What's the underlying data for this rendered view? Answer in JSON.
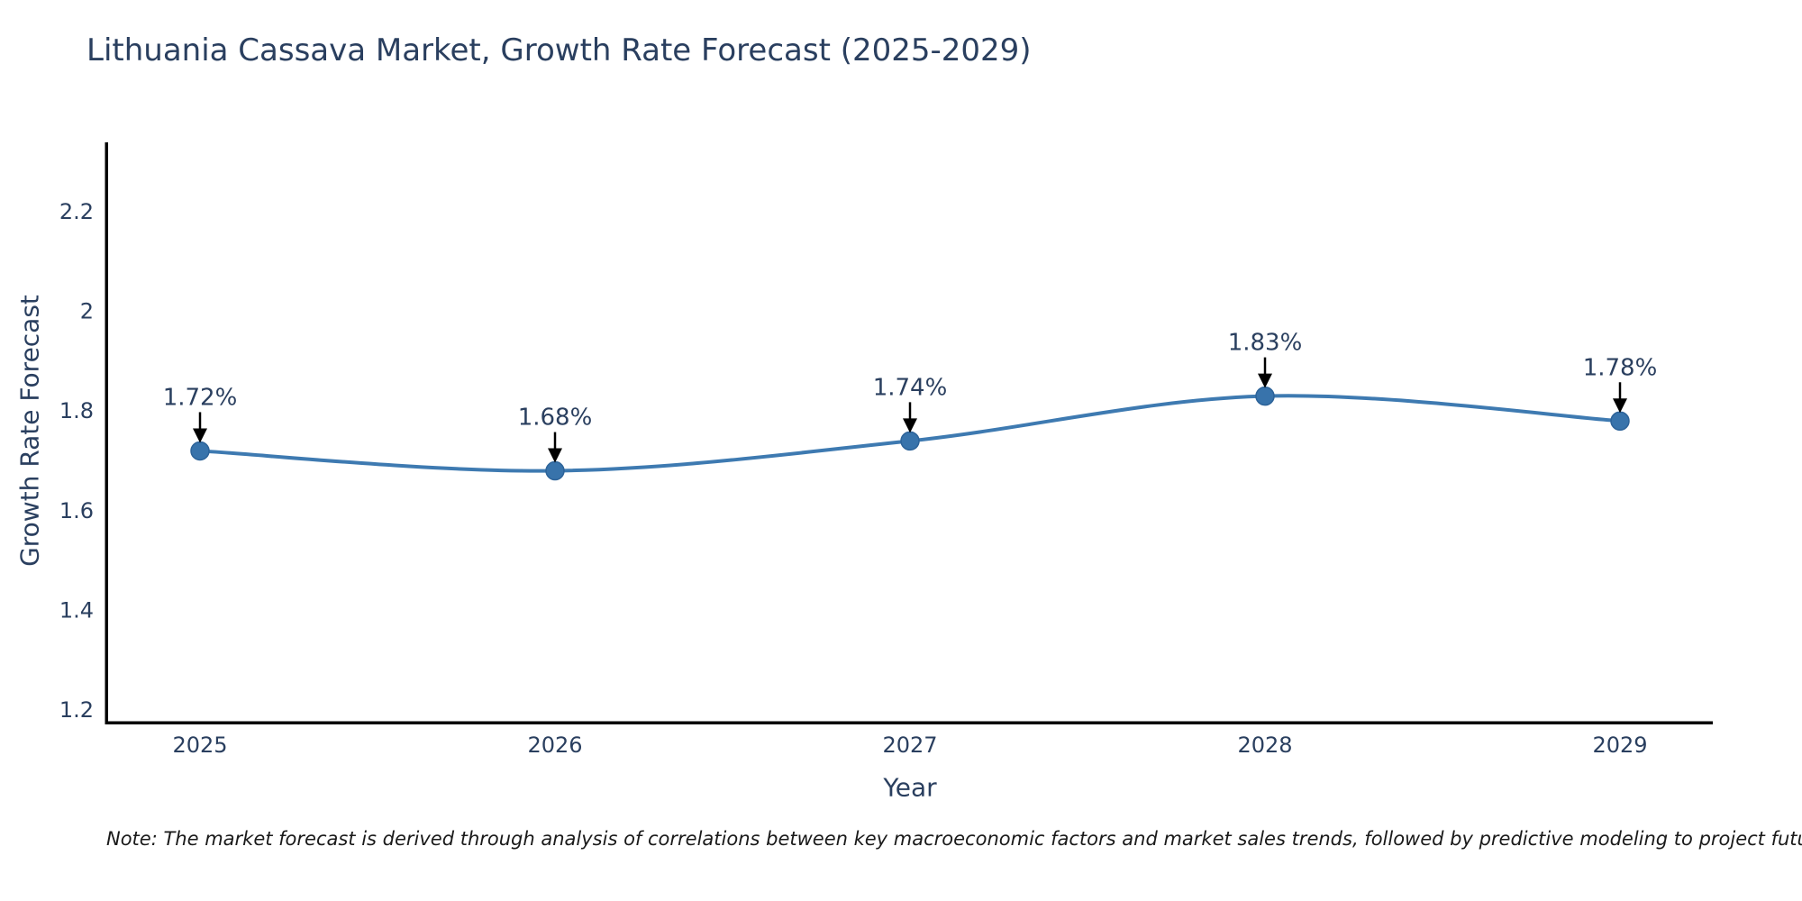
{
  "chart_data": {
    "type": "line",
    "title": "Lithuania Cassava Market, Growth Rate Forecast (2025-2029)",
    "xlabel": "Year",
    "ylabel": "Growth Rate Forecast",
    "x": [
      2025,
      2026,
      2027,
      2028,
      2029
    ],
    "y": [
      1.72,
      1.68,
      1.74,
      1.83,
      1.78
    ],
    "point_labels": [
      "1.72%",
      "1.68%",
      "1.74%",
      "1.83%",
      "1.78%"
    ],
    "xtick_labels": [
      "2025",
      "2026",
      "2027",
      "2028",
      "2029"
    ],
    "ytick_values": [
      1.2,
      1.4,
      1.6,
      1.8,
      2.0,
      2.2
    ],
    "ytick_labels": [
      "1.2",
      "1.4",
      "1.6",
      "1.8",
      "2",
      "2.2"
    ],
    "ylim": [
      1.175,
      2.335
    ],
    "line_shape": "spline",
    "grid": false,
    "legend": "none",
    "note": "Note: The market forecast is derived through analysis of correlations between key macroeconomic factors and market sales trends, followed by predictive modeling to project future sales",
    "colors": {
      "line": "#3e7ab1",
      "marker_fill": "#3873ab",
      "marker_edge": "#2d6399",
      "axis_line": "#000000",
      "arrow": "#000000",
      "text": "#2a3f5f",
      "note_text": "#1a1a1a",
      "background": "#ffffff"
    }
  }
}
